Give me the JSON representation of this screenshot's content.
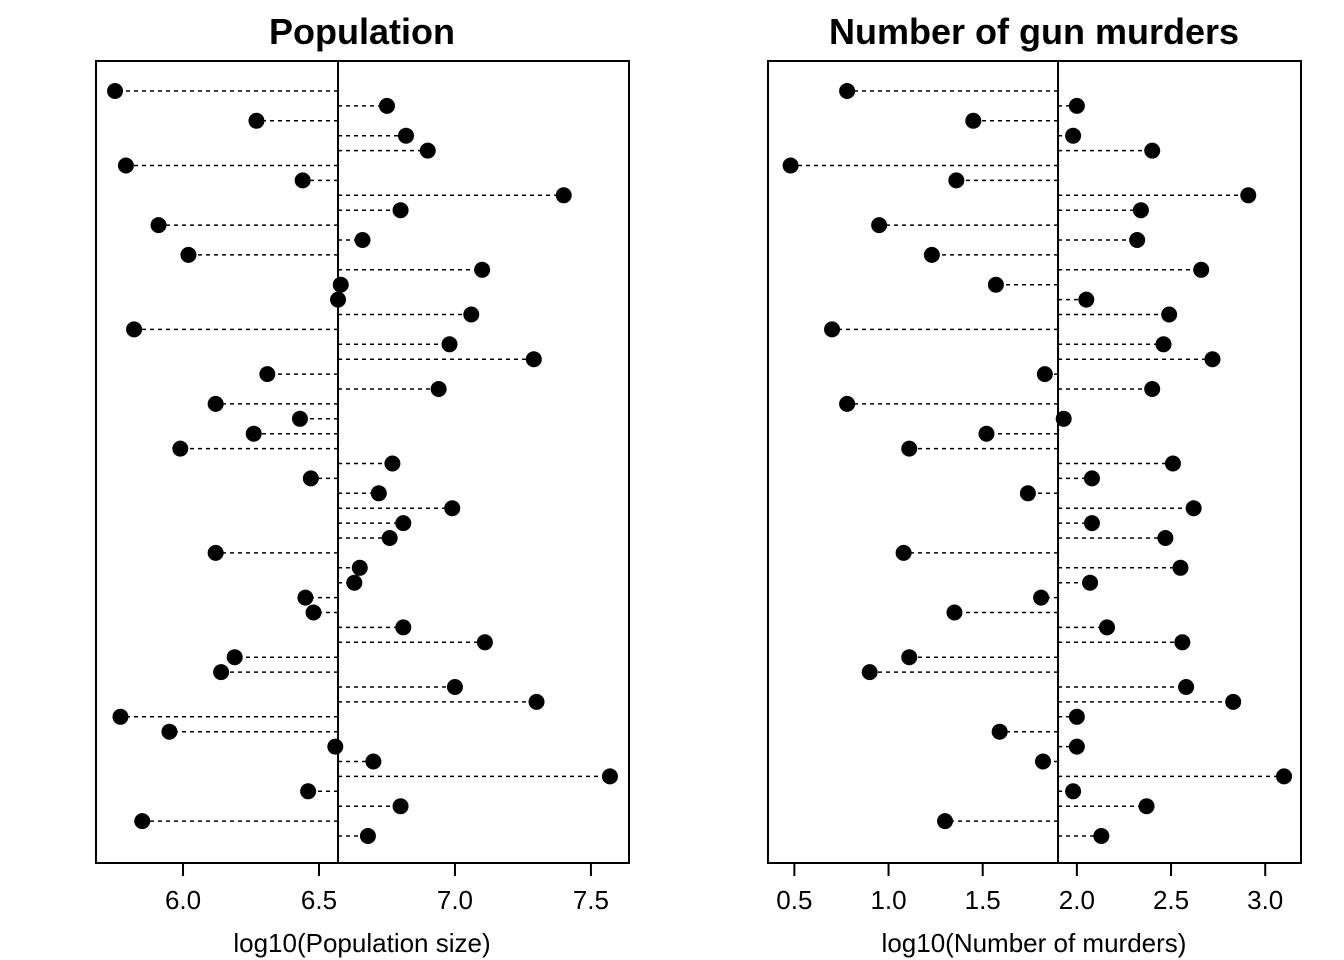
{
  "chart_data": [
    {
      "type": "dot",
      "title": "Population",
      "xlabel": "log10(Population size)",
      "ylabel": "",
      "xlim": [
        5.68,
        7.64
      ],
      "xticks": [
        6.0,
        6.5,
        7.0,
        7.5
      ],
      "xtick_labels": [
        "6.0",
        "6.5",
        "7.0",
        "7.5"
      ],
      "reference_line": 6.57,
      "grid": false,
      "legend": "none",
      "values": [
        5.75,
        6.75,
        6.27,
        6.82,
        6.9,
        5.79,
        6.44,
        7.4,
        6.8,
        5.91,
        6.66,
        6.02,
        7.1,
        6.58,
        6.57,
        7.06,
        5.82,
        6.98,
        7.29,
        6.31,
        6.94,
        6.12,
        6.43,
        6.26,
        5.99,
        6.77,
        6.47,
        6.72,
        6.99,
        6.81,
        6.76,
        6.12,
        6.65,
        6.63,
        6.45,
        6.48,
        6.81,
        7.11,
        6.19,
        6.14,
        7.0,
        7.3,
        5.77,
        5.95,
        6.56,
        6.7,
        7.57,
        6.46,
        6.8,
        5.85,
        6.68
      ]
    },
    {
      "type": "dot",
      "title": "Number of gun murders",
      "xlabel": "log10(Number of murders)",
      "ylabel": "",
      "xlim": [
        0.36,
        3.19
      ],
      "xticks": [
        0.5,
        1.0,
        1.5,
        2.0,
        2.5,
        3.0
      ],
      "xtick_labels": [
        "0.5",
        "1.0",
        "1.5",
        "2.0",
        "2.5",
        "3.0"
      ],
      "reference_line": 1.9,
      "grid": false,
      "legend": "none",
      "values": [
        0.78,
        2.0,
        1.45,
        1.98,
        2.4,
        0.48,
        1.36,
        2.91,
        2.34,
        0.95,
        2.32,
        1.23,
        2.66,
        1.57,
        2.05,
        2.49,
        0.7,
        2.46,
        2.72,
        1.83,
        2.4,
        0.78,
        1.93,
        1.52,
        1.11,
        2.51,
        2.08,
        1.74,
        2.62,
        2.08,
        2.47,
        1.08,
        2.55,
        2.07,
        1.81,
        1.35,
        2.16,
        2.56,
        1.11,
        0.9,
        2.58,
        2.83,
        2.0,
        1.59,
        2.0,
        1.82,
        3.1,
        1.98,
        2.37,
        1.3,
        2.13
      ]
    }
  ]
}
